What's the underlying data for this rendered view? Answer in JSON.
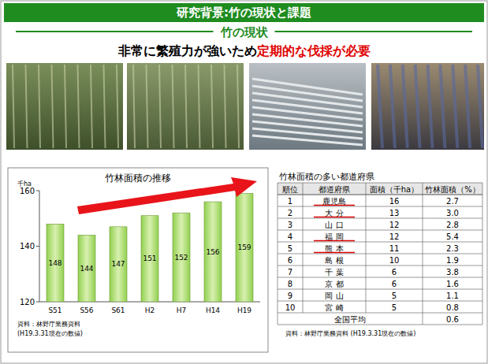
{
  "header": {
    "title": "研究背景:竹の現状と課題",
    "section": "竹の現状",
    "message": [
      "非常に繁殖力が強いため",
      "定期的な伐採が必要"
    ]
  },
  "chart_data": {
    "type": "bar",
    "title": "竹林面積の推移",
    "y_label": "千ha",
    "categories": [
      "S51",
      "S56",
      "S61",
      "H2",
      "H7",
      "H14",
      "H19"
    ],
    "values": [
      148,
      144,
      147,
      151,
      152,
      156,
      159
    ],
    "color": "#92d050",
    "ylim": [
      120,
      160
    ],
    "yticks": [
      120,
      140,
      160
    ],
    "grid": false,
    "data_labels": true,
    "annotations": [
      "資料：林野庁業務資料",
      "(H19.3.31現在の数値)"
    ]
  },
  "table": {
    "title": "竹林面積の多い都道府県",
    "columns": [
      "順位",
      "都道府県",
      "面積（千ha）",
      "竹林面積（%）"
    ],
    "rows": [
      [
        "1",
        "鹿児島",
        "16",
        "2.7"
      ],
      [
        "2",
        "大 分",
        "13",
        "3.0"
      ],
      [
        "3",
        "山 口",
        "12",
        "2.8"
      ],
      [
        "4",
        "福 岡",
        "12",
        "5.4"
      ],
      [
        "5",
        "熊 本",
        "11",
        "2.3"
      ],
      [
        "6",
        "島 根",
        "10",
        "1.9"
      ],
      [
        "7",
        "千 葉",
        "6",
        "3.8"
      ],
      [
        "8",
        "京 都",
        "6",
        "1.6"
      ],
      [
        "9",
        "岡 山",
        "5",
        "1.1"
      ],
      [
        "10",
        "宮 崎",
        "5",
        "0.8"
      ]
    ],
    "average": [
      "全国平均",
      "0.6"
    ],
    "source": "資料：林野庁業務資料 (H19.3.31現在の数値)"
  }
}
